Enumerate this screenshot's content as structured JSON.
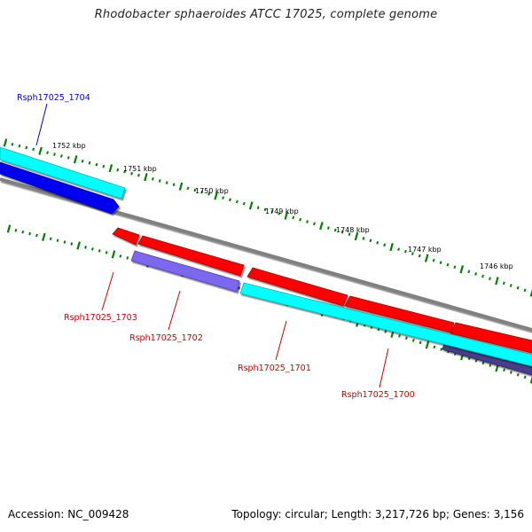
{
  "title": "Rhodobacter sphaeroides ATCC 17025, complete genome",
  "footer": {
    "accession": "Accession: NC_009428",
    "summary": "Topology: circular; Length: 3,217,726 bp; Genes: 3,156"
  },
  "scale_labels": [
    "1752 kbp",
    "1751 kbp",
    "1750 kbp",
    "1749 kbp",
    "1748 kbp",
    "1747 kbp",
    "1746 kbp"
  ],
  "colors": {
    "forward_gene": "#0000ee",
    "reverse_gene": "#ff0000",
    "cds": "#00ffff",
    "other_feature": "#6a5acd",
    "backbone": "#808080",
    "tick": "#008000",
    "forward_label": "#0000cc",
    "reverse_label": "#cc0000"
  },
  "gene_labels": [
    {
      "text": "Rsph17025_1704",
      "strand": "forward"
    },
    {
      "text": "Rsph17025_1703",
      "strand": "reverse"
    },
    {
      "text": "Rsph17025_1702",
      "strand": "reverse"
    },
    {
      "text": "Rsph17025_1701",
      "strand": "reverse"
    },
    {
      "text": "Rsph17025_1700",
      "strand": "reverse"
    }
  ]
}
